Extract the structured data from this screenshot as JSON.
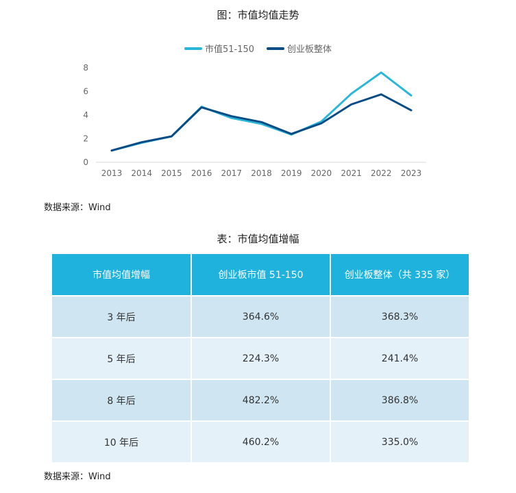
{
  "chart_data": {
    "type": "line",
    "title": "图：市值均值走势",
    "x": [
      "2013",
      "2014",
      "2015",
      "2016",
      "2017",
      "2018",
      "2019",
      "2020",
      "2021",
      "2022",
      "2023"
    ],
    "series": [
      {
        "name": "市值51-150",
        "color": "#2ab7d9",
        "values": [
          1.0,
          1.65,
          2.2,
          4.7,
          3.75,
          3.25,
          2.35,
          3.45,
          5.8,
          7.6,
          5.65
        ]
      },
      {
        "name": "创业板整体",
        "color": "#0a4d86",
        "values": [
          1.0,
          1.7,
          2.2,
          4.65,
          3.9,
          3.4,
          2.4,
          3.3,
          4.9,
          5.75,
          4.4
        ]
      }
    ],
    "ylim": [
      0,
      8
    ],
    "yticks": [
      "0",
      "2",
      "4",
      "6",
      "8"
    ],
    "legend": "top-center",
    "grid": false
  },
  "chart_source": "数据来源：Wind",
  "table": {
    "title": "表：市值均值增幅",
    "headers": [
      "市值均值增幅",
      "创业板市值 51-150",
      "创业板整体（共 335 家）"
    ],
    "rows": [
      [
        "3 年后",
        "364.6%",
        "368.3%"
      ],
      [
        "5 年后",
        "224.3%",
        "241.4%"
      ],
      [
        "8 年后",
        "482.2%",
        "386.8%"
      ],
      [
        "10 年后",
        "460.2%",
        "335.0%"
      ]
    ],
    "header_color": "#1fb2dd",
    "row_colors": [
      "#cfe6f2",
      "#e4f1f8"
    ]
  },
  "table_source": "数据来源：Wind"
}
